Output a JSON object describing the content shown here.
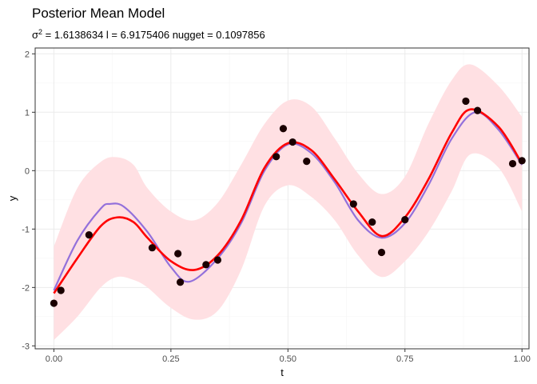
{
  "chart_data": {
    "type": "line",
    "title": "Posterior Mean Model",
    "subtitle": {
      "sigma_symbol": "σ",
      "sigma_exponent": "2",
      "sigma_text": " = 1.6138634   l = 6.9175406   nugget = 0.1097856"
    },
    "xlabel": "t",
    "ylabel": "y",
    "xlim": [
      -0.04,
      1.015
    ],
    "ylim": [
      -3.05,
      2.1
    ],
    "x_ticks": [
      0,
      0.25,
      0.5,
      0.75,
      1
    ],
    "x_tick_labels": [
      "0.00",
      "0.25",
      "0.50",
      "0.75",
      "1.00"
    ],
    "y_ticks": [
      -3,
      -2,
      -1,
      0,
      1,
      2
    ],
    "y_tick_labels": [
      "-3",
      "-2",
      "-1",
      "0",
      "1",
      "2"
    ],
    "grid": true,
    "colors": {
      "band": "#ffe0e3",
      "true_curve": "#9370db",
      "posterior_mean": "#ff0000",
      "points": "#1a0000",
      "panel_border": "#333333",
      "grid_major": "#ebebeb",
      "grid_minor": "#f5f5f5"
    },
    "points": {
      "x": [
        0.0,
        0.015,
        0.075,
        0.21,
        0.265,
        0.27,
        0.325,
        0.35,
        0.475,
        0.49,
        0.51,
        0.54,
        0.64,
        0.68,
        0.7,
        0.75,
        0.88,
        0.905,
        0.98,
        1.0
      ],
      "y": [
        -2.27,
        -2.05,
        -1.1,
        -1.32,
        -1.42,
        -1.91,
        -1.61,
        -1.53,
        0.24,
        0.72,
        0.49,
        0.16,
        -0.57,
        -0.88,
        -1.4,
        -0.84,
        1.19,
        1.03,
        0.12,
        0.17
      ]
    },
    "series": [
      {
        "x": [
          0.0,
          0.05,
          0.1,
          0.12,
          0.15,
          0.2,
          0.25,
          0.29,
          0.35,
          0.4,
          0.45,
          0.5,
          0.55,
          0.6,
          0.65,
          0.7,
          0.75,
          0.8,
          0.85,
          0.9,
          0.95,
          1.0
        ],
        "y": [
          -2.05,
          -1.2,
          -0.65,
          -0.57,
          -0.62,
          -1.05,
          -1.65,
          -1.9,
          -1.5,
          -0.9,
          0.0,
          0.45,
          0.3,
          -0.2,
          -0.85,
          -1.15,
          -0.9,
          -0.25,
          0.55,
          1.0,
          0.7,
          0.1
        ]
      },
      {
        "x": [
          0.0,
          0.05,
          0.1,
          0.135,
          0.17,
          0.2,
          0.25,
          0.3,
          0.35,
          0.4,
          0.45,
          0.5,
          0.55,
          0.6,
          0.65,
          0.7,
          0.75,
          0.8,
          0.85,
          0.89,
          0.95,
          1.0
        ],
        "y": [
          -2.1,
          -1.5,
          -0.95,
          -0.8,
          -0.88,
          -1.15,
          -1.55,
          -1.7,
          -1.45,
          -0.85,
          0.05,
          0.47,
          0.35,
          -0.15,
          -0.7,
          -1.12,
          -0.8,
          -0.15,
          0.65,
          1.05,
          0.75,
          0.12
        ]
      }
    ],
    "band": {
      "x": [
        0.0,
        0.05,
        0.1,
        0.135,
        0.17,
        0.2,
        0.25,
        0.3,
        0.35,
        0.4,
        0.45,
        0.5,
        0.55,
        0.6,
        0.65,
        0.7,
        0.75,
        0.8,
        0.85,
        0.89,
        0.95,
        1.0
      ],
      "upper": [
        -1.3,
        -0.3,
        0.15,
        0.23,
        0.1,
        -0.3,
        -0.7,
        -0.85,
        -0.55,
        0.1,
        0.8,
        1.2,
        1.1,
        0.55,
        -0.05,
        -0.4,
        -0.1,
        0.8,
        1.55,
        1.82,
        1.45,
        0.92
      ],
      "lower": [
        -2.9,
        -2.5,
        -2.0,
        -1.82,
        -1.87,
        -2.0,
        -2.35,
        -2.55,
        -2.4,
        -1.7,
        -0.6,
        -0.25,
        -0.45,
        -0.85,
        -1.45,
        -1.82,
        -1.55,
        -1.05,
        -0.35,
        0.28,
        0.05,
        -0.7
      ]
    }
  }
}
